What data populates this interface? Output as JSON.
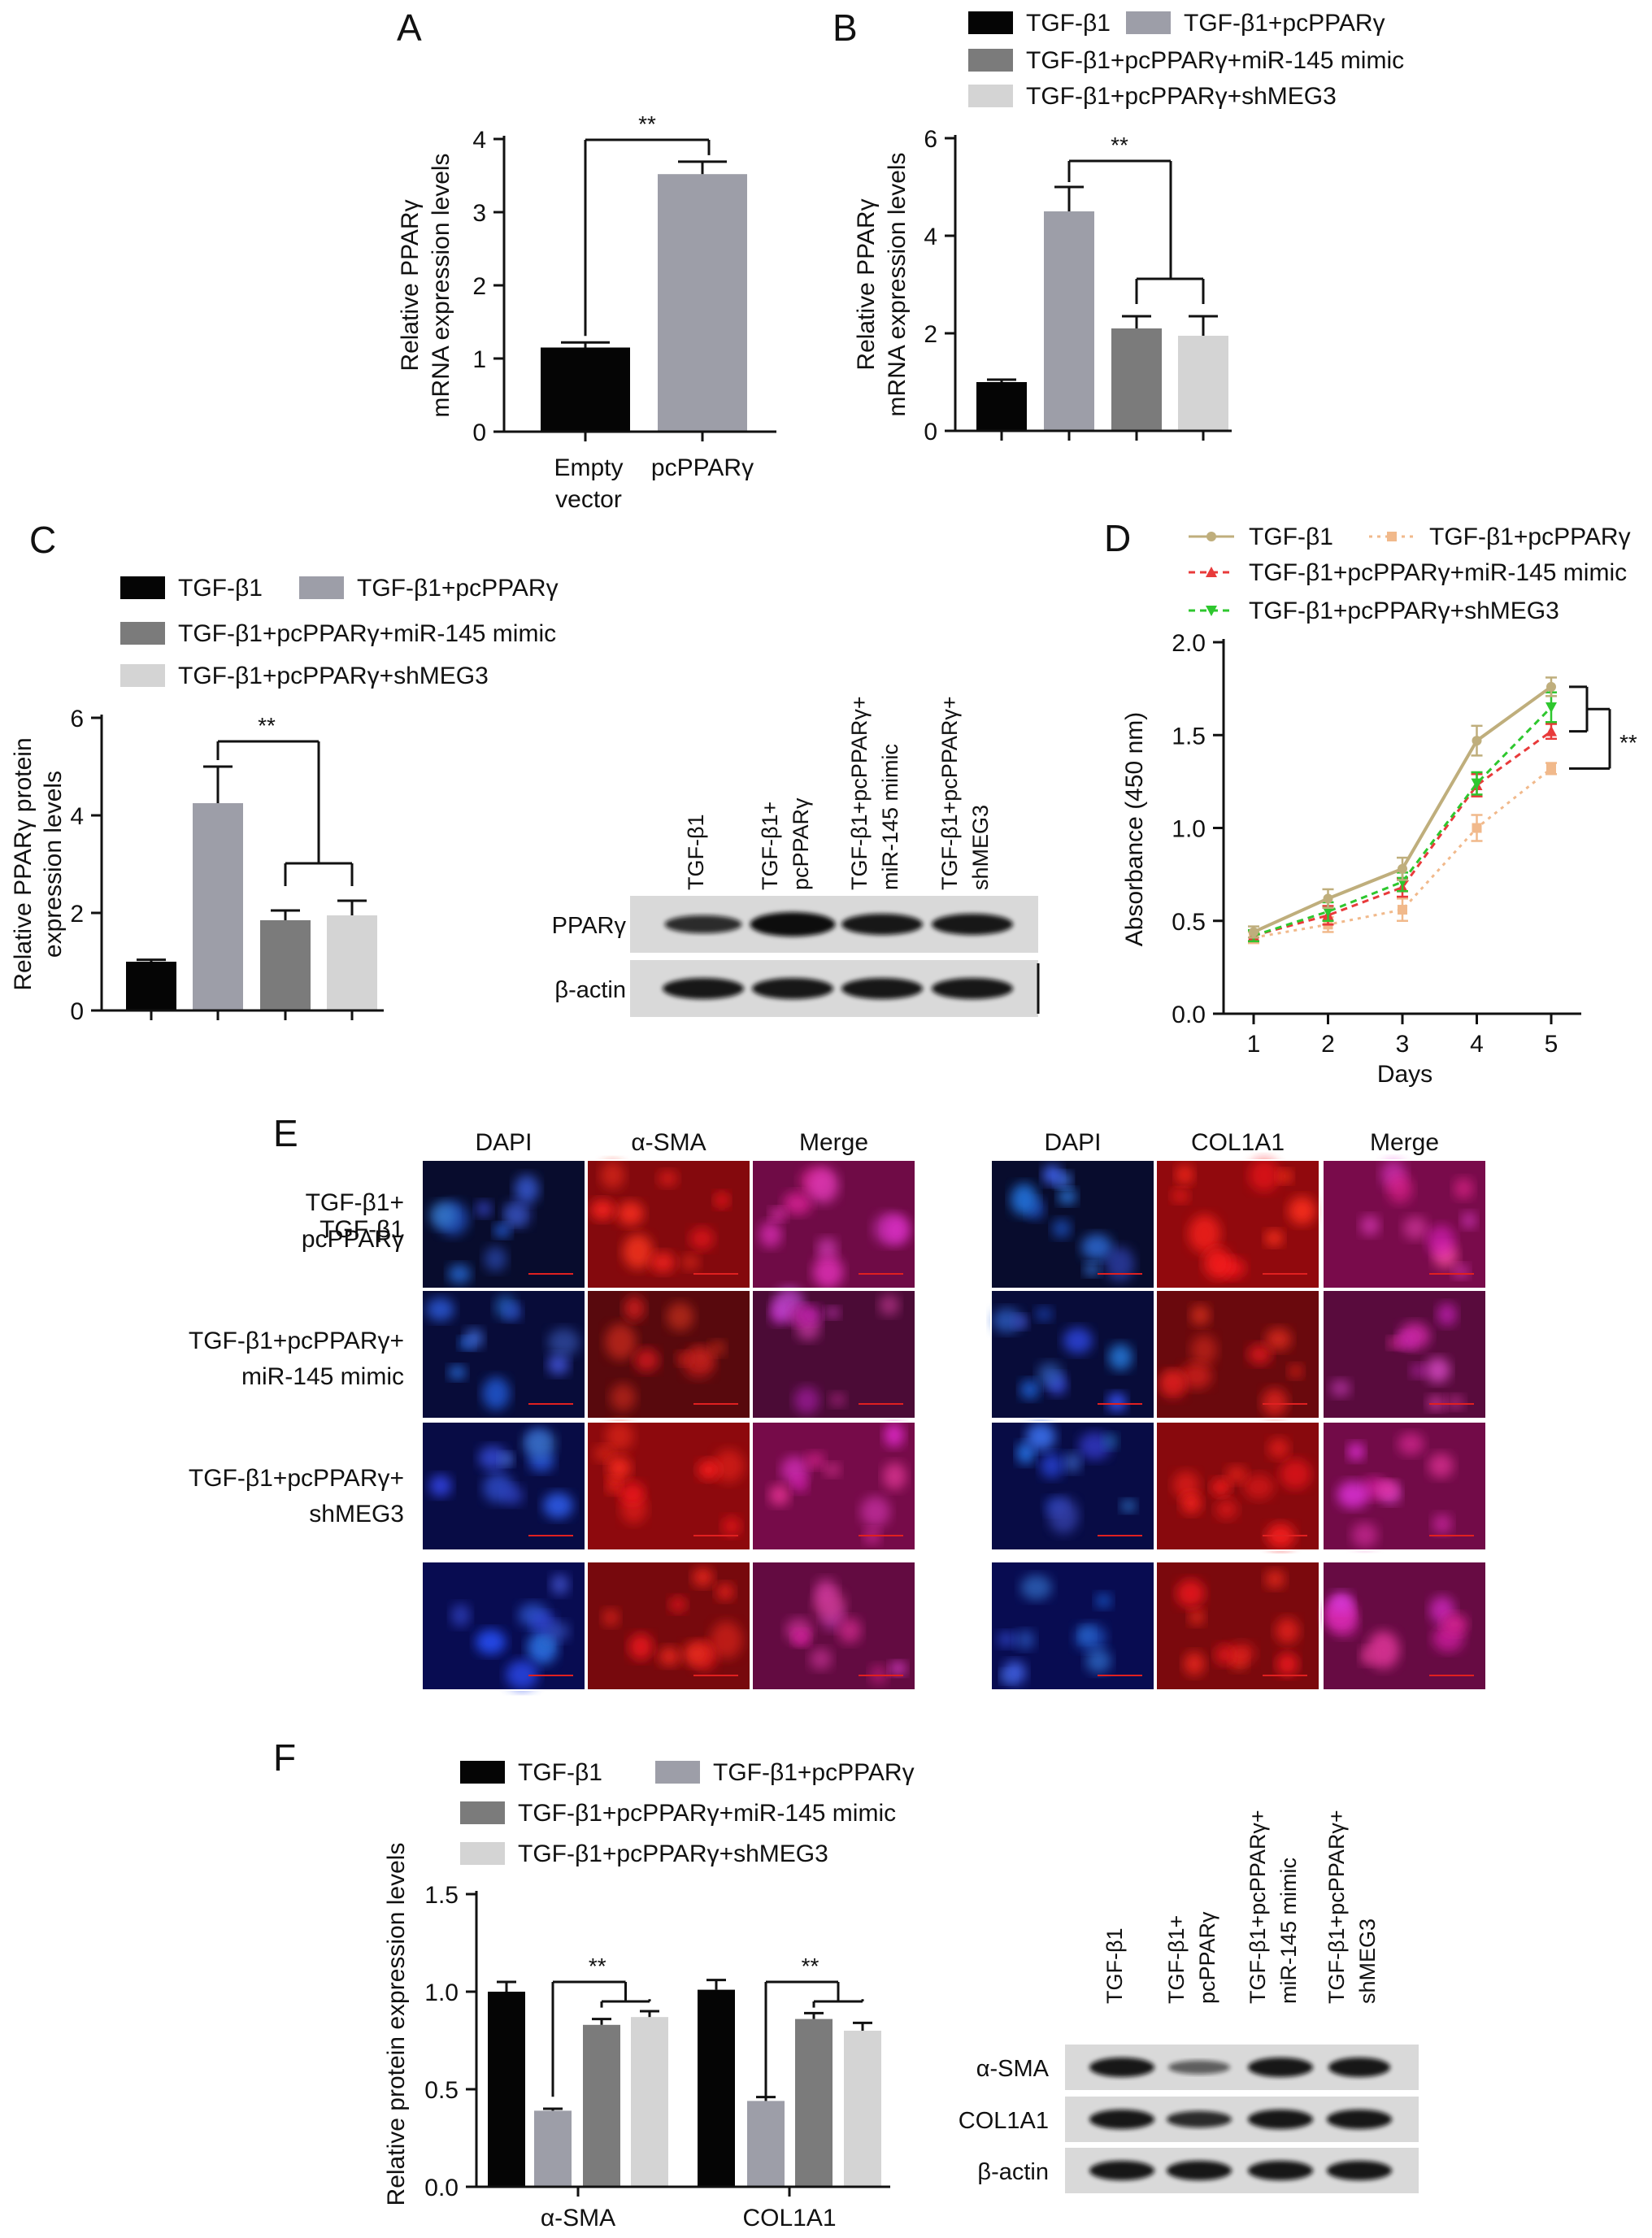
{
  "colors": {
    "black": "#050505",
    "light_grey": "#9d9ea8",
    "dark_grey": "#7b7b7b",
    "pale_grey": "#d4d4d4",
    "line_tan": "#bfae7c",
    "line_orange": "#f1b98b",
    "line_red": "#e83a3a",
    "line_green": "#2ec72e"
  },
  "significance": "**",
  "panels": {
    "A": {
      "label": "A",
      "chart_data": {
        "type": "bar",
        "categories": [
          "Empty vector",
          "pcPPARγ"
        ],
        "values": [
          1.15,
          3.52
        ],
        "errors": [
          0.07,
          0.17
        ],
        "ylabel_lines": [
          "Relative PPARγ",
          "mRNA expression levels"
        ],
        "ylim": [
          0,
          4
        ],
        "yticks": [
          "0",
          "1",
          "2",
          "3",
          "4"
        ],
        "significance": "**"
      }
    },
    "B": {
      "label": "B",
      "legend": [
        "TGF-β1",
        "TGF-β1+pcPPARγ",
        "TGF-β1+pcPPARγ+miR-145 mimic",
        "TGF-β1+pcPPARγ+shMEG3"
      ],
      "chart_data": {
        "type": "bar",
        "categories": [
          "TGF-β1",
          "TGF-β1+pcPPARγ",
          "TGF-β1+pcPPARγ+miR-145 mimic",
          "TGF-β1+pcPPARγ+shMEG3"
        ],
        "values": [
          1.0,
          4.5,
          2.1,
          1.95
        ],
        "errors": [
          0.05,
          0.5,
          0.25,
          0.4
        ],
        "ylabel_lines": [
          "Relative PPARγ",
          "mRNA expression levels"
        ],
        "ylim": [
          0,
          6
        ],
        "yticks": [
          "0",
          "2",
          "4",
          "6"
        ],
        "significance": "**"
      }
    },
    "C": {
      "label": "C",
      "legend": [
        "TGF-β1",
        "TGF-β1+pcPPARγ",
        "TGF-β1+pcPPARγ+miR-145 mimic",
        "TGF-β1+pcPPARγ+shMEG3"
      ],
      "chart_data": {
        "type": "bar",
        "categories": [
          "TGF-β1",
          "TGF-β1+pcPPARγ",
          "TGF-β1+pcPPARγ+miR-145 mimic",
          "TGF-β1+pcPPARγ+shMEG3"
        ],
        "values": [
          1.0,
          4.25,
          1.85,
          1.95
        ],
        "errors": [
          0.04,
          0.75,
          0.2,
          0.3
        ],
        "ylabel_lines": [
          "Relative PPARγ protein",
          "expression levels"
        ],
        "ylim": [
          0,
          6
        ],
        "yticks": [
          "0",
          "2",
          "4",
          "6"
        ],
        "significance": "**"
      },
      "blot": {
        "lanes": [
          [
            "TGF-β1"
          ],
          [
            "TGF-β1+",
            "pcPPARγ"
          ],
          [
            "TGF-β1+pcPPARγ+",
            "miR-145 mimic"
          ],
          [
            "TGF-β1+pcPPARγ+",
            "shMEG3"
          ]
        ],
        "rows": [
          "PPARγ",
          "β-actin"
        ]
      }
    },
    "D": {
      "label": "D",
      "chart_data": {
        "type": "line",
        "x": [
          1,
          2,
          3,
          4,
          5
        ],
        "xlabel": "Days",
        "ylabel": "Absorbance (450 nm)",
        "ylim": [
          0,
          2
        ],
        "xticks": [
          "1",
          "2",
          "3",
          "4",
          "5"
        ],
        "yticks": [
          "0.0",
          "0.5",
          "1.0",
          "1.5",
          "2.0"
        ],
        "significance": "**",
        "series": [
          {
            "name": "TGF-β1",
            "values": [
              0.44,
              0.62,
              0.78,
              1.47,
              1.76
            ],
            "errors": [
              0.03,
              0.05,
              0.06,
              0.08,
              0.05
            ]
          },
          {
            "name": "TGF-β1+pcPPARγ",
            "values": [
              0.41,
              0.48,
              0.56,
              1.0,
              1.32
            ],
            "errors": [
              0.03,
              0.04,
              0.06,
              0.07,
              0.03
            ]
          },
          {
            "name": "TGF-β1+pcPPARγ+miR-145 mimic",
            "values": [
              0.42,
              0.53,
              0.68,
              1.23,
              1.52
            ],
            "errors": [
              0.03,
              0.05,
              0.05,
              0.06,
              0.04
            ]
          },
          {
            "name": "TGF-β1+pcPPARγ+shMEG3",
            "values": [
              0.42,
              0.55,
              0.71,
              1.24,
              1.65
            ],
            "errors": [
              0.03,
              0.05,
              0.05,
              0.06,
              0.08
            ]
          }
        ]
      }
    },
    "E": {
      "label": "E",
      "left_headers": [
        "DAPI",
        "α-SMA",
        "Merge"
      ],
      "right_headers": [
        "DAPI",
        "COL1A1",
        "Merge"
      ],
      "rows": [
        [
          "TGF-β1"
        ],
        [
          "TGF-β1+",
          "pcPPARγ"
        ],
        [
          "TGF-β1+pcPPARγ+",
          "miR-145 mimic"
        ],
        [
          "TGF-β1+pcPPARγ+",
          "shMEG3"
        ]
      ]
    },
    "F": {
      "label": "F",
      "legend": [
        "TGF-β1",
        "TGF-β1+pcPPARγ",
        "TGF-β1+pcPPARγ+miR-145 mimic",
        "TGF-β1+pcPPARγ+shMEG3"
      ],
      "chart_data": {
        "type": "bar",
        "categories": [
          "α-SMA",
          "COL1A1"
        ],
        "series": [
          {
            "name": "TGF-β1",
            "values": [
              1.0,
              1.01
            ],
            "errors": [
              0.05,
              0.05
            ]
          },
          {
            "name": "TGF-β1+pcPPARγ",
            "values": [
              0.39,
              0.44
            ],
            "errors": [
              0.01,
              0.02
            ]
          },
          {
            "name": "TGF-β1+pcPPARγ+miR-145 mimic",
            "values": [
              0.83,
              0.86
            ],
            "errors": [
              0.03,
              0.03
            ]
          },
          {
            "name": "TGF-β1+pcPPARγ+shMEG3",
            "values": [
              0.87,
              0.8
            ],
            "errors": [
              0.03,
              0.04
            ]
          }
        ],
        "ylabel": "Relative protein expression levels",
        "ylim": [
          0,
          1.5
        ],
        "yticks": [
          "0.0",
          "0.5",
          "1.0",
          "1.5"
        ],
        "significance": "**"
      },
      "blot": {
        "lanes": [
          [
            "TGF-β1"
          ],
          [
            "TGF-β1+",
            "pcPPARγ"
          ],
          [
            "TGF-β1+pcPPARγ+",
            "miR-145 mimic"
          ],
          [
            "TGF-β1+pcPPARγ+",
            "shMEG3"
          ]
        ],
        "rows": [
          "α-SMA",
          "COL1A1",
          "β-actin"
        ]
      }
    }
  }
}
